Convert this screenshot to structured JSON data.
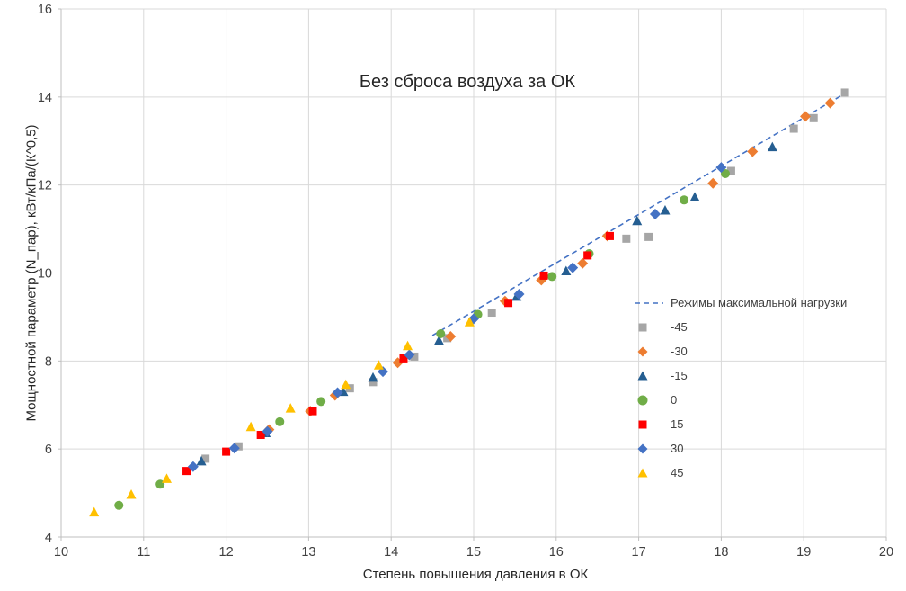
{
  "chart_data": {
    "type": "scatter",
    "title": "Без сброса воздуха за ОК",
    "xlabel": "Степень повышения давления в ОК",
    "ylabel": "Мощностной параметр (N_пар), кВт/кПа/(К^0,5)",
    "xlim": [
      10,
      20
    ],
    "ylim": [
      4,
      16
    ],
    "xticks": [
      10,
      11,
      12,
      13,
      14,
      15,
      16,
      17,
      18,
      19,
      20
    ],
    "yticks": [
      4,
      6,
      8,
      10,
      12,
      14,
      16
    ],
    "grid": true,
    "grid_color": "#D9D9D9",
    "axis_color": "#BFBFBF",
    "tick_label_color": "#404040",
    "legend_position": "middle-right",
    "line_series": {
      "name": "Режимы максимальной нагрузки",
      "color": "#4472C4",
      "dash": "6 4",
      "points": [
        [
          14.5,
          8.58
        ],
        [
          19.5,
          14.08
        ]
      ]
    },
    "series": [
      {
        "name": "-45",
        "marker": "square",
        "color": "#A6A6A6",
        "points": [
          [
            11.75,
            5.78
          ],
          [
            12.15,
            6.06
          ],
          [
            13.5,
            7.38
          ],
          [
            13.78,
            7.52
          ],
          [
            14.28,
            8.1
          ],
          [
            14.68,
            8.52
          ],
          [
            15.22,
            9.1
          ],
          [
            16.85,
            10.78
          ],
          [
            17.12,
            10.82
          ],
          [
            18.12,
            12.32
          ],
          [
            18.88,
            13.28
          ],
          [
            19.12,
            13.52
          ],
          [
            19.5,
            14.1
          ]
        ]
      },
      {
        "name": "-30",
        "marker": "diamond",
        "color": "#ED7D31",
        "points": [
          [
            12.52,
            6.44
          ],
          [
            13.02,
            6.86
          ],
          [
            13.32,
            7.22
          ],
          [
            14.08,
            7.96
          ],
          [
            14.72,
            8.56
          ],
          [
            15.38,
            9.36
          ],
          [
            15.82,
            9.84
          ],
          [
            16.32,
            10.22
          ],
          [
            16.62,
            10.84
          ],
          [
            17.9,
            12.04
          ],
          [
            18.38,
            12.76
          ],
          [
            19.02,
            13.56
          ],
          [
            19.32,
            13.86
          ]
        ]
      },
      {
        "name": "-15",
        "marker": "triangle",
        "color": "#255E91",
        "points": [
          [
            11.7,
            5.72
          ],
          [
            12.48,
            6.36
          ],
          [
            13.42,
            7.3
          ],
          [
            13.78,
            7.62
          ],
          [
            14.58,
            8.46
          ],
          [
            15.52,
            9.46
          ],
          [
            16.12,
            10.04
          ],
          [
            16.98,
            11.18
          ],
          [
            17.32,
            11.42
          ],
          [
            17.68,
            11.72
          ],
          [
            18.62,
            12.86
          ]
        ]
      },
      {
        "name": "0",
        "marker": "circle",
        "color": "#70AD47",
        "points": [
          [
            10.7,
            4.72
          ],
          [
            11.2,
            5.2
          ],
          [
            12.65,
            6.62
          ],
          [
            13.15,
            7.08
          ],
          [
            14.6,
            8.62
          ],
          [
            15.05,
            9.06
          ],
          [
            15.95,
            9.92
          ],
          [
            16.4,
            10.44
          ],
          [
            17.55,
            11.66
          ],
          [
            18.05,
            12.26
          ]
        ]
      },
      {
        "name": "15",
        "marker": "square",
        "color": "#FF0000",
        "points": [
          [
            11.52,
            5.5
          ],
          [
            12.0,
            5.94
          ],
          [
            12.42,
            6.32
          ],
          [
            13.05,
            6.86
          ],
          [
            14.15,
            8.06
          ],
          [
            15.42,
            9.32
          ],
          [
            15.85,
            9.94
          ],
          [
            16.38,
            10.4
          ],
          [
            16.65,
            10.84
          ]
        ]
      },
      {
        "name": "30",
        "marker": "diamond",
        "color": "#4472C4",
        "points": [
          [
            11.6,
            5.6
          ],
          [
            12.1,
            6.02
          ],
          [
            12.5,
            6.4
          ],
          [
            13.35,
            7.28
          ],
          [
            13.9,
            7.76
          ],
          [
            14.22,
            8.14
          ],
          [
            15.0,
            8.96
          ],
          [
            15.55,
            9.52
          ],
          [
            16.2,
            10.12
          ],
          [
            17.2,
            11.34
          ],
          [
            18.0,
            12.4
          ]
        ]
      },
      {
        "name": "45",
        "marker": "triangle",
        "color": "#FFC000",
        "points": [
          [
            10.4,
            4.56
          ],
          [
            10.85,
            4.96
          ],
          [
            11.28,
            5.32
          ],
          [
            12.3,
            6.5
          ],
          [
            12.78,
            6.92
          ],
          [
            13.45,
            7.46
          ],
          [
            13.85,
            7.9
          ],
          [
            14.2,
            8.34
          ],
          [
            14.95,
            8.88
          ]
        ]
      }
    ]
  }
}
